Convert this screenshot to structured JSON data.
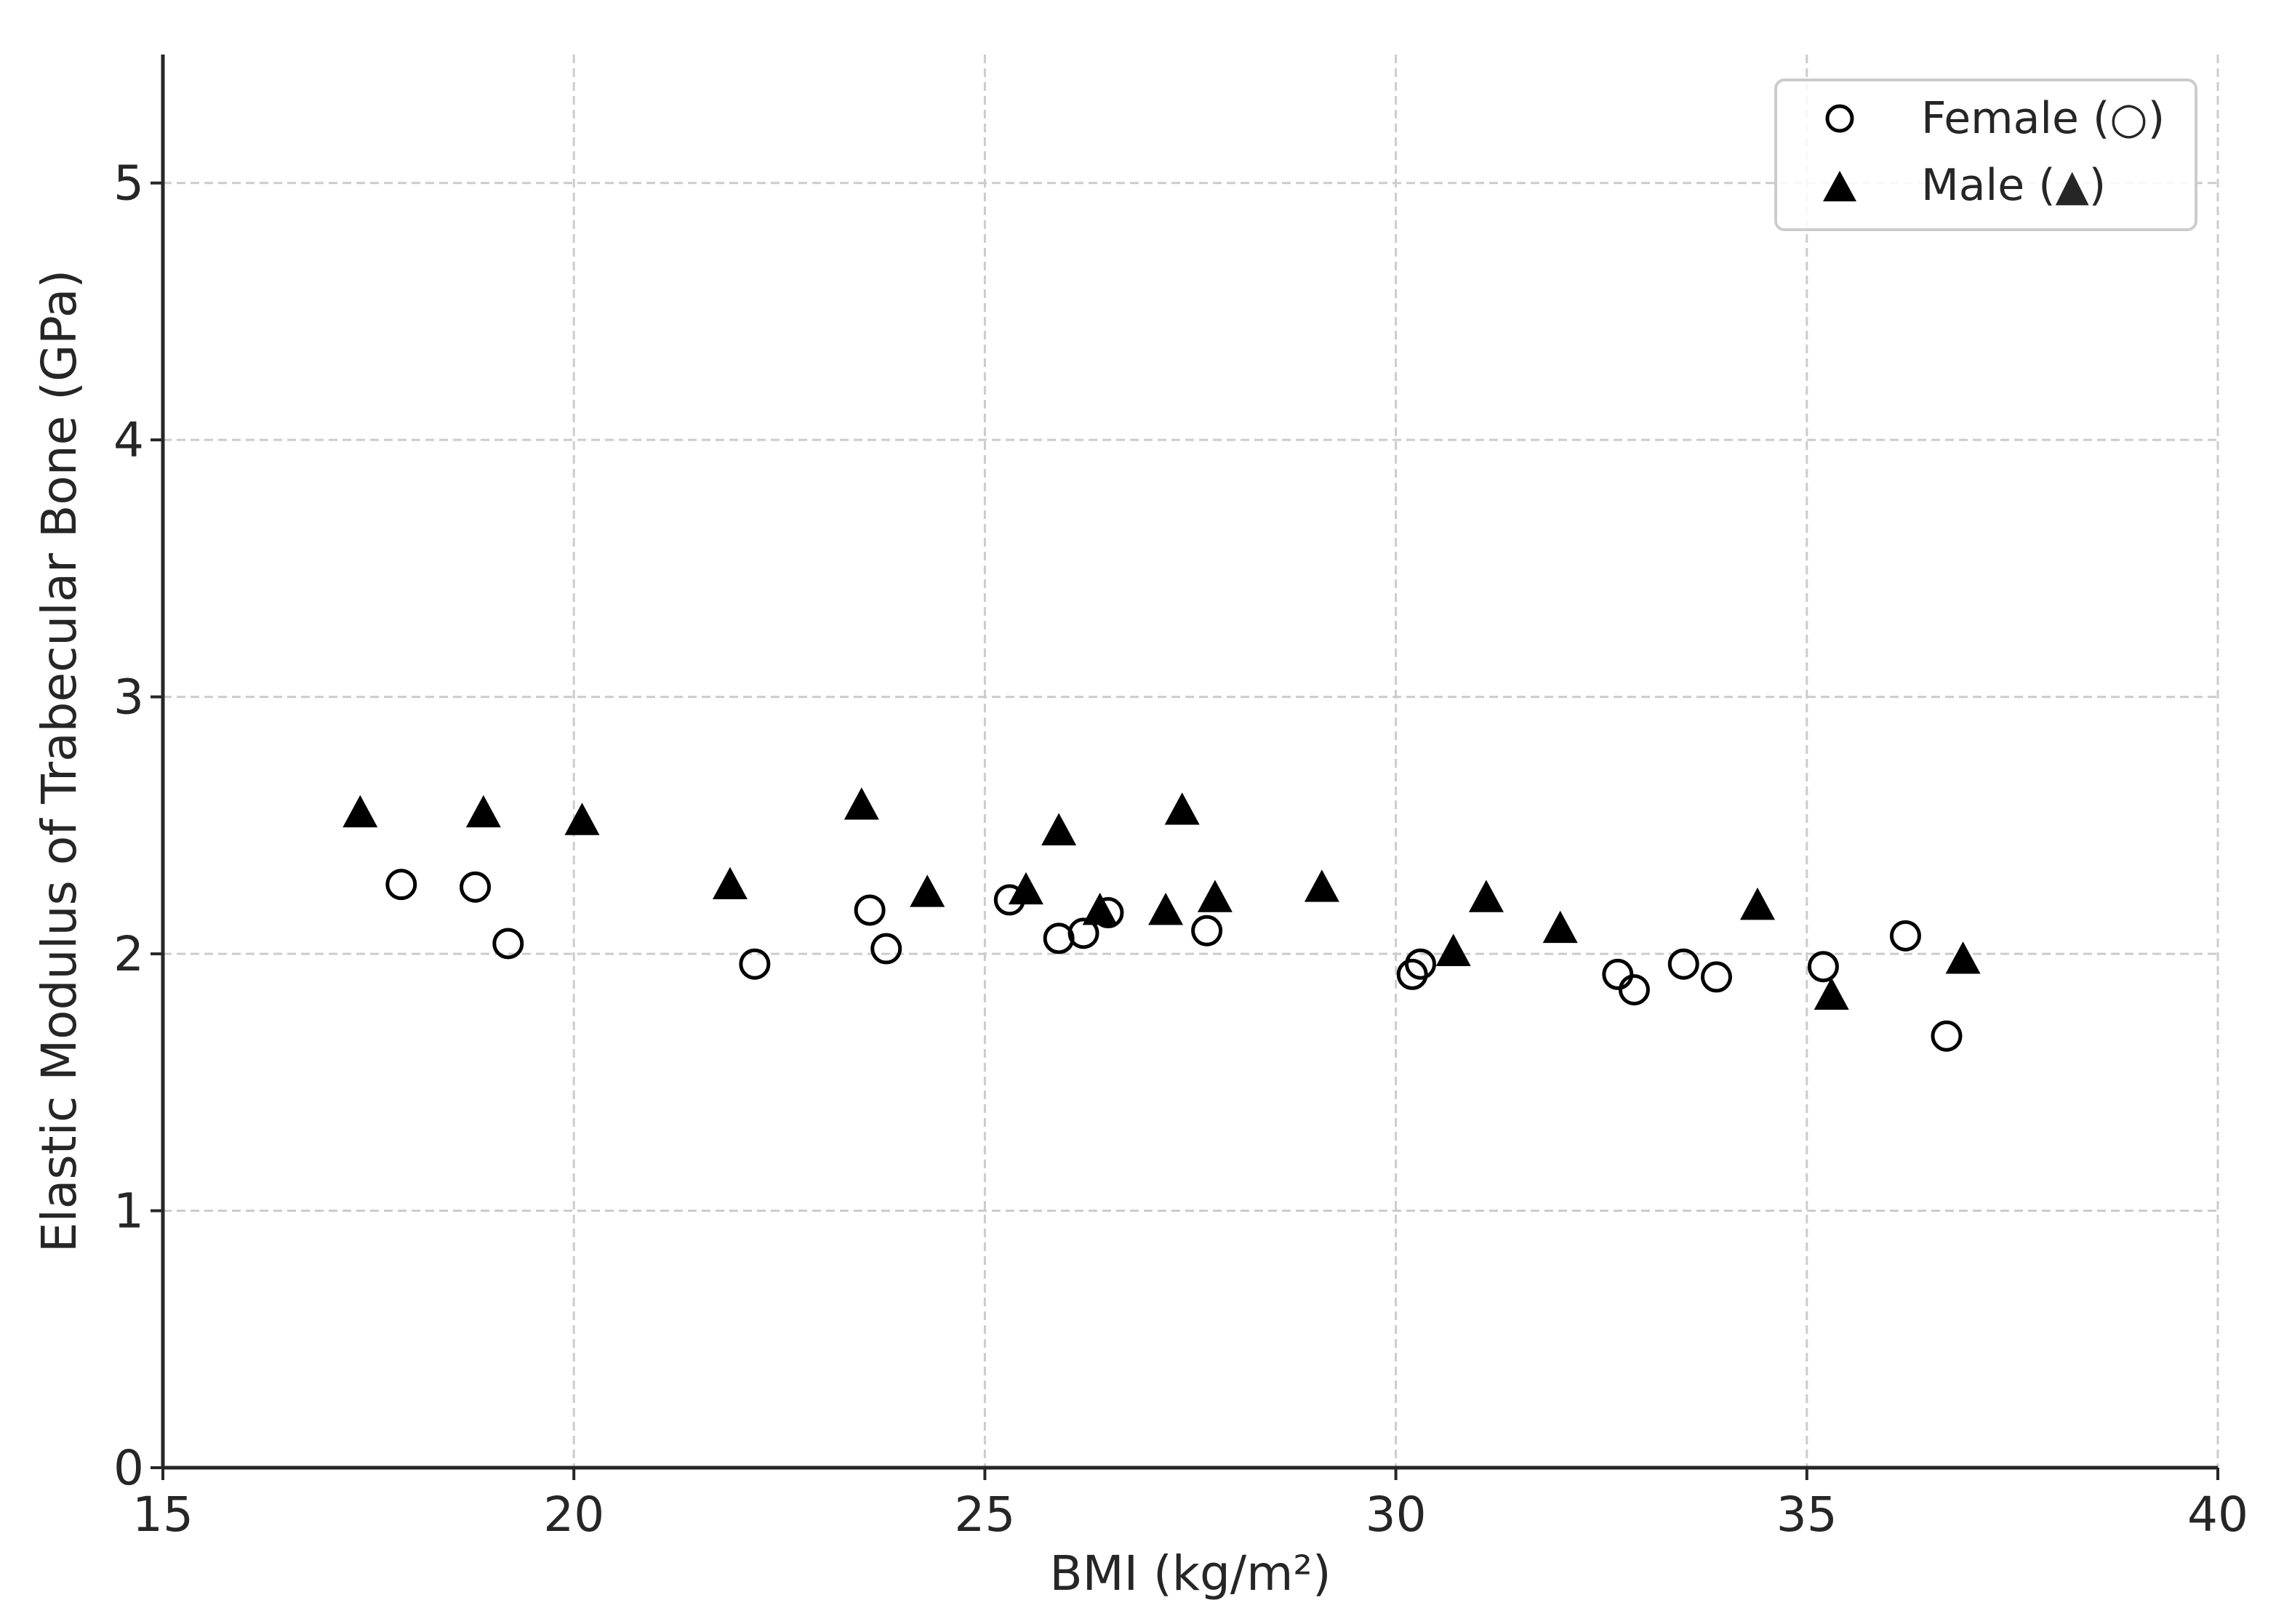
{
  "chart_data": {
    "type": "scatter",
    "title": "",
    "xlabel": "BMI (kg/m²)",
    "ylabel": "Elastic Modulus of Trabecular Bone (GPa)",
    "xlim": [
      15,
      40
    ],
    "ylim": [
      0,
      5.5
    ],
    "xticks": [
      15,
      20,
      25,
      30,
      35,
      40
    ],
    "yticks": [
      0,
      1,
      2,
      3,
      4,
      5
    ],
    "grid": true,
    "legend_position": "top-right",
    "series": [
      {
        "name": "Female (○)",
        "marker": "circle-open",
        "color": "#000000",
        "points": [
          {
            "x": 17.9,
            "y": 2.27
          },
          {
            "x": 18.8,
            "y": 2.26
          },
          {
            "x": 19.2,
            "y": 2.04
          },
          {
            "x": 22.2,
            "y": 1.96
          },
          {
            "x": 23.6,
            "y": 2.17
          },
          {
            "x": 23.8,
            "y": 2.02
          },
          {
            "x": 25.3,
            "y": 2.21
          },
          {
            "x": 25.9,
            "y": 2.06
          },
          {
            "x": 26.2,
            "y": 2.08
          },
          {
            "x": 26.5,
            "y": 2.16
          },
          {
            "x": 27.7,
            "y": 2.09
          },
          {
            "x": 30.2,
            "y": 1.92
          },
          {
            "x": 30.3,
            "y": 1.96
          },
          {
            "x": 32.7,
            "y": 1.92
          },
          {
            "x": 32.9,
            "y": 1.86
          },
          {
            "x": 33.5,
            "y": 1.96
          },
          {
            "x": 33.9,
            "y": 1.91
          },
          {
            "x": 35.2,
            "y": 1.95
          },
          {
            "x": 36.2,
            "y": 2.07
          },
          {
            "x": 36.7,
            "y": 1.68
          }
        ]
      },
      {
        "name": "Male (▲)",
        "marker": "triangle-filled",
        "color": "#000000",
        "points": [
          {
            "x": 17.4,
            "y": 2.55
          },
          {
            "x": 18.9,
            "y": 2.55
          },
          {
            "x": 20.1,
            "y": 2.52
          },
          {
            "x": 21.9,
            "y": 2.27
          },
          {
            "x": 23.5,
            "y": 2.58
          },
          {
            "x": 24.3,
            "y": 2.24
          },
          {
            "x": 25.5,
            "y": 2.25
          },
          {
            "x": 25.9,
            "y": 2.48
          },
          {
            "x": 26.4,
            "y": 2.17
          },
          {
            "x": 27.2,
            "y": 2.17
          },
          {
            "x": 27.4,
            "y": 2.56
          },
          {
            "x": 27.8,
            "y": 2.22
          },
          {
            "x": 29.1,
            "y": 2.26
          },
          {
            "x": 30.7,
            "y": 2.01
          },
          {
            "x": 31.1,
            "y": 2.22
          },
          {
            "x": 32.0,
            "y": 2.1
          },
          {
            "x": 34.4,
            "y": 2.19
          },
          {
            "x": 35.3,
            "y": 1.84
          },
          {
            "x": 36.9,
            "y": 1.98
          }
        ]
      }
    ]
  }
}
